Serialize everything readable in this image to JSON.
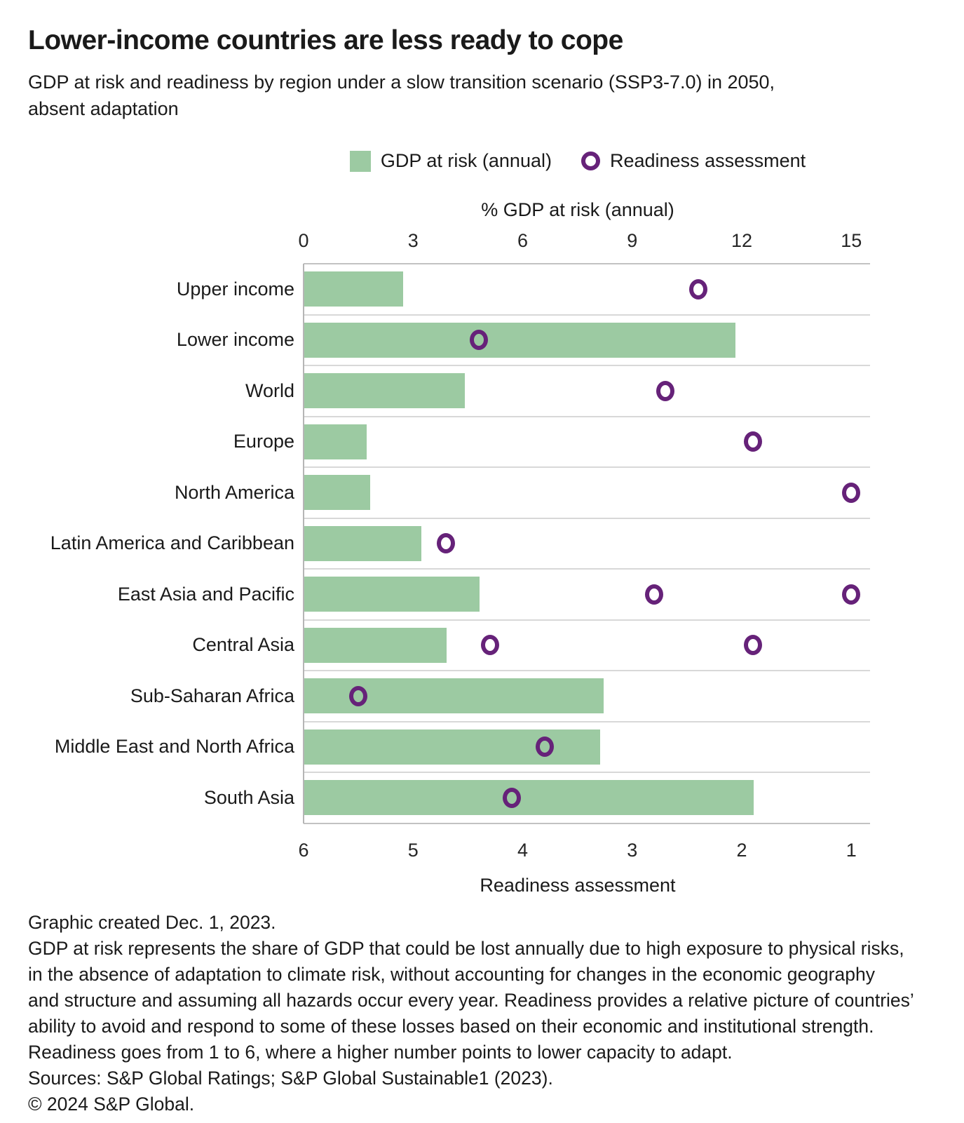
{
  "title": "Lower-income countries are less ready to cope",
  "subtitle": {
    "lines": [
      "GDP at risk and readiness by region under a slow transition scenario (SSP3-7.0) in 2050,",
      "absent adaptation"
    ]
  },
  "legend": {
    "gdp_label": "GDP at risk (annual)",
    "readiness_label": "Readiness assessment"
  },
  "colors": {
    "bar_green": "#9ccaa2",
    "ring_purple": "#662279",
    "text": "#1a1a1a",
    "grid": "#d8d8d8"
  },
  "chart_data": {
    "type": "bar",
    "orientation": "horizontal",
    "title": "Lower-income countries are less ready to cope",
    "top_axis": {
      "label": "% GDP at risk (annual)",
      "ticks": [
        0,
        3,
        6,
        9,
        12,
        15
      ],
      "range": [
        0,
        15
      ]
    },
    "bottom_axis": {
      "label": "Readiness assessment",
      "ticks": [
        6,
        5,
        4,
        3,
        2,
        1
      ],
      "range": [
        6,
        1
      ],
      "reversed": true
    },
    "categories": [
      "Upper income",
      "Lower income",
      "World",
      "Europe",
      "North America",
      "Latin America and Caribbean",
      "East Asia and Pacific",
      "Central Asia",
      "Sub-Saharan Africa",
      "Middle East and North Africa",
      "South Asia"
    ],
    "series": [
      {
        "name": "GDP at risk (annual)",
        "marker": "bar",
        "axis": "top",
        "values": [
          2.7,
          11.8,
          4.4,
          1.7,
          1.8,
          3.2,
          4.8,
          3.9,
          8.2,
          8.1,
          12.3
        ]
      },
      {
        "name": "Readiness assessment",
        "marker": "ring",
        "axis": "bottom",
        "values_per_category": [
          [
            2.4
          ],
          [
            4.4
          ],
          [
            2.7
          ],
          [
            1.9
          ],
          [
            1.0
          ],
          [
            4.7
          ],
          [
            2.8,
            1.0
          ],
          [
            4.3,
            1.9
          ],
          [
            5.5
          ],
          [
            3.8
          ],
          [
            4.1
          ]
        ]
      }
    ]
  },
  "footer": {
    "lines": [
      "Graphic created Dec. 1, 2023.",
      "GDP at risk represents the share of GDP that could be lost annually due to high exposure to physical risks,",
      "in the absence of adaptation to climate risk, without accounting for changes in the economic geography",
      "and structure and assuming all hazards occur every year. Readiness provides a relative picture of countries’",
      "ability to avoid and respond to some of these losses based on their economic and institutional strength.",
      "Readiness goes from 1 to 6, where a higher number points to lower capacity to adapt.",
      "Sources: S&P Global Ratings; S&P Global Sustainable1 (2023).",
      "© 2024 S&P Global."
    ]
  }
}
